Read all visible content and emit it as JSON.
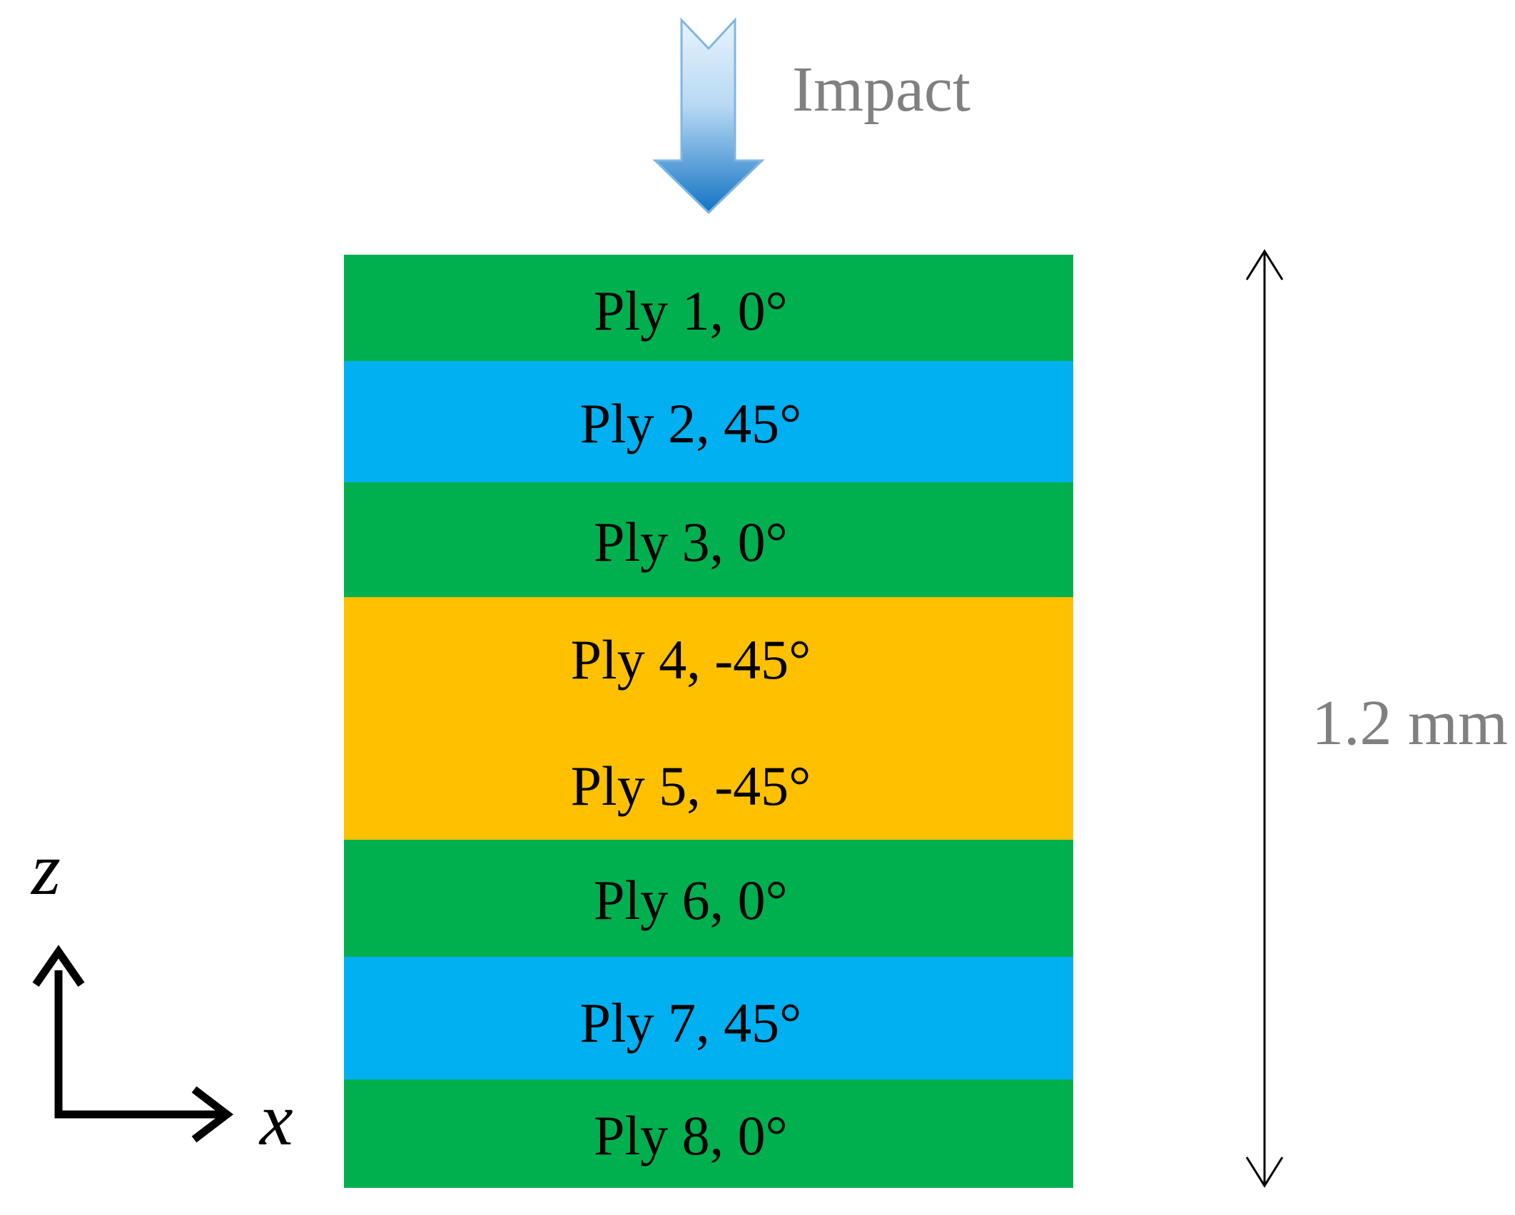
{
  "impact_label": "Impact",
  "thickness_label": "1.2 mm",
  "axes": {
    "vertical": "z",
    "horizontal": "x"
  },
  "plies": [
    {
      "label": "Ply 1, 0°",
      "angle_deg": 0,
      "color": "#00b04f"
    },
    {
      "label": "Ply 2, 45°",
      "angle_deg": 45,
      "color": "#00b0f0"
    },
    {
      "label": "Ply 3, 0°",
      "angle_deg": 0,
      "color": "#00b04f"
    },
    {
      "label": "Ply 4, -45°",
      "angle_deg": -45,
      "color": "#ffc000"
    },
    {
      "label": "Ply 5, -45°",
      "angle_deg": -45,
      "color": "#ffc000"
    },
    {
      "label": "Ply 6, 0°",
      "angle_deg": 0,
      "color": "#00b04f"
    },
    {
      "label": "Ply 7, 45°",
      "angle_deg": 45,
      "color": "#00b0f0"
    },
    {
      "label": "Ply 8, 0°",
      "angle_deg": 0,
      "color": "#00b04f"
    }
  ],
  "colors": {
    "green": "#00b04f",
    "blue": "#00b0f0",
    "orange": "#ffc000",
    "arrow_light": "#cfe6fa",
    "arrow_dark": "#1273c2"
  },
  "icons": {
    "impact": "down-arrow-icon",
    "thickness": "double-headed-arrow-icon",
    "axes": "coordinate-axes-icon"
  }
}
